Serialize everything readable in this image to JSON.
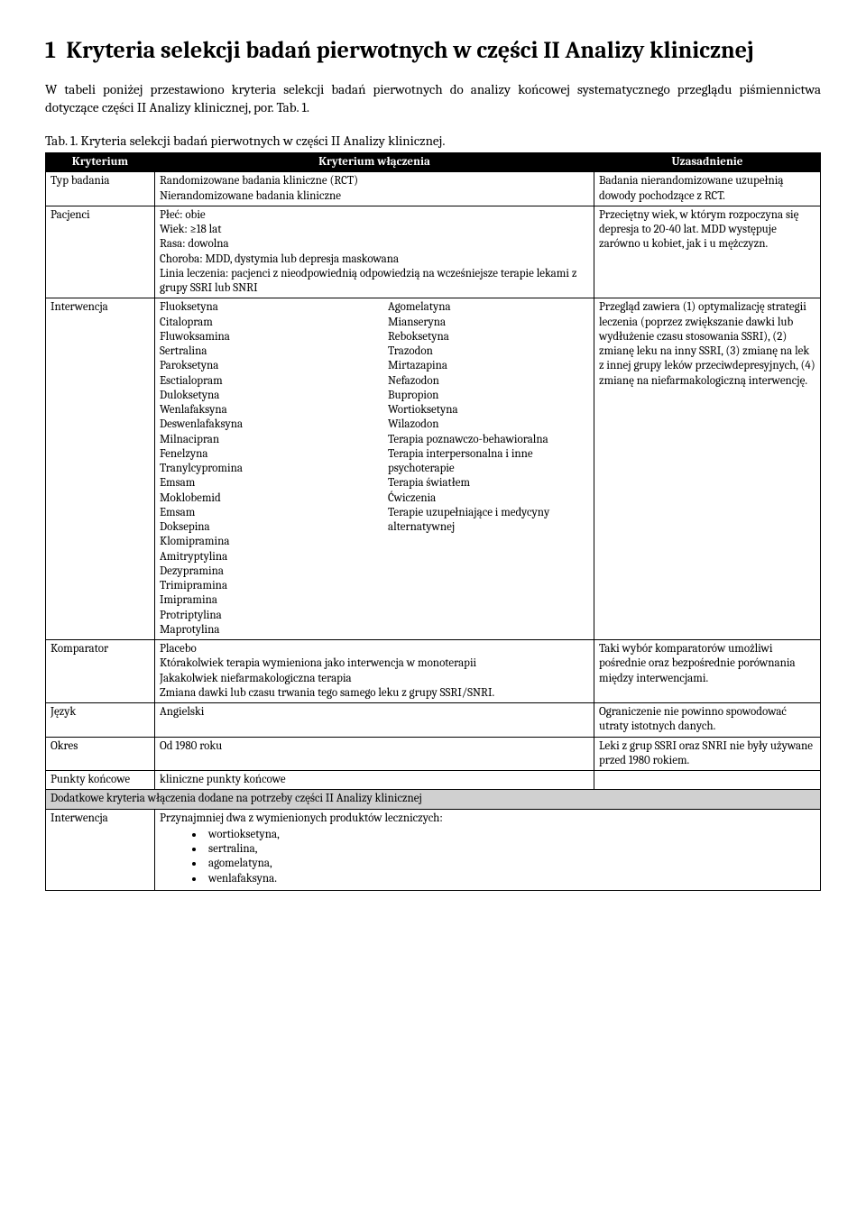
{
  "heading_num": "1",
  "heading_text": "Kryteria selekcji badań pierwotnych w części II Analizy klinicznej",
  "intro": "W tabeli poniżej przestawiono kryteria selekcji badań pierwotnych do analizy końcowej systematycznego przeglądu piśmiennictwa dotyczące części II Analizy klinicznej, por. Tab. 1.",
  "caption": "Tab. 1. Kryteria selekcji badań pierwotnych w części II Analizy klinicznej.",
  "headers": {
    "c1": "Kryterium",
    "c2": "Kryterium włączenia",
    "c3": "Uzasadnienie"
  },
  "rows": {
    "typ": {
      "label": "Typ badania",
      "inc1": "Randomizowane badania kliniczne (RCT)",
      "inc2": "Nierandomizowane badania kliniczne",
      "just": "Badania nierandomizowane uzupełnią dowody pochodzące z RCT."
    },
    "pac": {
      "label": "Pacjenci",
      "l1": "Płeć: obie",
      "l2": "Wiek: ≥18 lat",
      "l3": "Rasa: dowolna",
      "l4": "Choroba: MDD, dystymia lub depresja maskowana",
      "l5": "Linia leczenia: pacjenci z nieodpowiednią odpowiedzią na wcześniejsze terapie lekami z grupy SSRI lub SNRI",
      "just": "Przeciętny wiek, w którym rozpoczyna się depresja to 20-40 lat. MDD występuje zarówno u kobiet, jak i u mężczyzn."
    },
    "int": {
      "label": "Interwencja",
      "colA": [
        "Fluoksetyna",
        "Citalopram",
        "Fluwoksamina",
        "Sertralina",
        "Paroksetyna",
        "Esctialopram",
        "Duloksetyna",
        "Wenlafaksyna",
        "Deswenlafaksyna",
        "Milnacipran",
        "Fenelzyna",
        "Tranylcypromina",
        "Emsam",
        "Moklobemid",
        "Emsam",
        "Doksepina",
        "Klomipramina",
        "Amitryptylina",
        "Dezypramina",
        "Trimipramina",
        "Imipramina",
        "Protriptylina",
        "Maprotylina"
      ],
      "colB": [
        "Agomelatyna",
        "Mianseryna",
        "Reboksetyna",
        "Trazodon",
        "Mirtazapina",
        "Nefazodon",
        "Bupropion",
        "Wortioksetyna",
        "Wilazodon",
        "Terapia poznawczo-behawioralna",
        "Terapia interpersonalna i inne psychoterapie",
        "Terapia światłem",
        "Ćwiczenia",
        "Terapie uzupełniające i medycyny alternatywnej"
      ],
      "just": "Przegląd zawiera (1) optymalizację strategii leczenia (poprzez zwiększanie dawki lub wydłużenie czasu stosowania SSRI), (2) zmianę leku na inny SSRI, (3) zmianę na lek z innej grupy leków przeciwdepresyjnych, (4) zmianę na niefarmakologiczną interwencję."
    },
    "komp": {
      "label": "Komparator",
      "l1": "Placebo",
      "l2": "Którakolwiek terapia wymieniona jako interwencja w monoterapii",
      "l3": "Jakakolwiek niefarmakologiczna terapia",
      "l4": "Zmiana dawki lub czasu trwania tego samego leku z grupy SSRI/SNRI.",
      "just": "Taki wybór komparatorów umożliwi pośrednie oraz bezpośrednie porównania między interwencjami."
    },
    "jez": {
      "label": "Język",
      "inc": "Angielski",
      "just": "Ograniczenie nie powinno spowodować utraty istotnych danych."
    },
    "okr": {
      "label": "Okres",
      "inc": "Od 1980 roku",
      "just": "Leki z grup SSRI oraz SNRI nie były używane przed 1980 rokiem."
    },
    "pk": {
      "label": "Punkty końcowe",
      "inc": "kliniczne punkty końcowe"
    }
  },
  "subhead": "Dodatkowe kryteria włączenia dodane na potrzeby części II Analizy klinicznej",
  "extra": {
    "label": "Interwencja",
    "lead": "Przynajmniej dwa z wymienionych produktów leczniczych:",
    "items": [
      "wortioksetyna,",
      "sertralina,",
      "agomelatyna,",
      "wenlafaksyna."
    ]
  }
}
